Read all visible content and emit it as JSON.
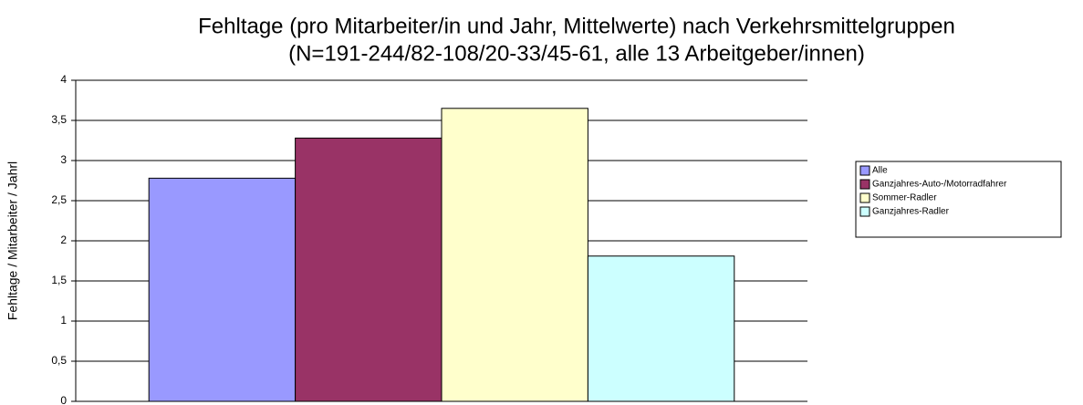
{
  "chart_data": {
    "type": "bar",
    "title": "Fehltage (pro Mitarbeiter/in und Jahr, Mittelwerte) nach Verkehrsmittelgruppen",
    "subtitle": "(N=191-244/82-108/20-33/45-61, alle 13 Arbeitgeber/innen)",
    "y_label": "Fehltage / Mitarbeiter / Jahrl",
    "categories": [
      null
    ],
    "series": [
      {
        "name": "Alle",
        "color": "#9999ff",
        "values": [
          2.78
        ]
      },
      {
        "name": "Ganzjahres-Auto-/Motorradfahrer",
        "color": "#993366",
        "values": [
          3.28
        ]
      },
      {
        "name": "Sommer-Radler",
        "color": "#ffffcc",
        "values": [
          3.65
        ]
      },
      {
        "name": "Ganzjahres-Radler",
        "color": "#ccffff",
        "values": [
          1.81
        ]
      }
    ],
    "ylim": [
      0,
      4
    ],
    "yticks": [
      0,
      {
        "value": 0.5,
        "label": "0,5"
      },
      1,
      {
        "value": 1.5,
        "label": "1,5"
      },
      2,
      {
        "value": 2.5,
        "label": "2,5"
      },
      3,
      {
        "value": 3.5,
        "label": "3,5"
      },
      4
    ],
    "grid": true,
    "legend": "right"
  }
}
